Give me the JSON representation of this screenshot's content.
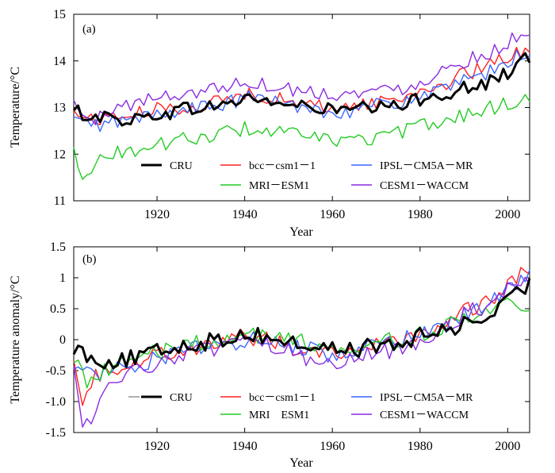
{
  "colors": {
    "CRU": "#000000",
    "bcc": "#ff2020",
    "ipsl": "#3a66ff",
    "mri": "#22cc22",
    "cesm": "#8a2be2",
    "grey_mark": "#b0b0b0"
  },
  "chart_data": [
    {
      "type": "line",
      "panel_label": "(a)",
      "xlabel": "Year",
      "ylabel": "Temperature/°C",
      "xlim": [
        1901,
        2005
      ],
      "ylim": [
        11,
        15
      ],
      "x_ticks": [
        1920,
        1940,
        1960,
        1980,
        2000
      ],
      "y_ticks": [
        11,
        12,
        13,
        14,
        15
      ],
      "x_tick_labels": [
        "1920",
        "1940",
        "1960",
        "1980",
        "2000"
      ],
      "y_tick_labels": [
        "11",
        "12",
        "13",
        "14",
        "15"
      ],
      "legend_position": "bottom-right",
      "series": [
        {
          "name": "CRU",
          "color_key": "CRU",
          "width": 3,
          "keyframes": [
            [
              1901,
              12.9
            ],
            [
              1905,
              12.85
            ],
            [
              1910,
              12.75
            ],
            [
              1915,
              12.75
            ],
            [
              1920,
              12.85
            ],
            [
              1925,
              12.95
            ],
            [
              1930,
              13.0
            ],
            [
              1935,
              13.05
            ],
            [
              1940,
              13.2
            ],
            [
              1945,
              13.15
            ],
            [
              1950,
              13.05
            ],
            [
              1955,
              13.0
            ],
            [
              1960,
              12.95
            ],
            [
              1965,
              12.95
            ],
            [
              1970,
              13.0
            ],
            [
              1975,
              13.0
            ],
            [
              1980,
              13.2
            ],
            [
              1985,
              13.3
            ],
            [
              1990,
              13.4
            ],
            [
              1995,
              13.5
            ],
            [
              2000,
              13.75
            ],
            [
              2005,
              14.1
            ]
          ]
        },
        {
          "name": "bcc－csm1－1",
          "color_key": "bcc",
          "width": 1.4,
          "keyframes": [
            [
              1901,
              12.9
            ],
            [
              1905,
              12.75
            ],
            [
              1910,
              12.8
            ],
            [
              1915,
              12.85
            ],
            [
              1920,
              12.95
            ],
            [
              1925,
              13.0
            ],
            [
              1930,
              13.05
            ],
            [
              1935,
              13.15
            ],
            [
              1940,
              13.3
            ],
            [
              1945,
              13.25
            ],
            [
              1950,
              13.1
            ],
            [
              1955,
              13.05
            ],
            [
              1960,
              13.0
            ],
            [
              1965,
              13.05
            ],
            [
              1970,
              13.1
            ],
            [
              1975,
              13.2
            ],
            [
              1980,
              13.35
            ],
            [
              1985,
              13.5
            ],
            [
              1990,
              13.7
            ],
            [
              1995,
              13.85
            ],
            [
              2000,
              14.1
            ],
            [
              2005,
              14.3
            ]
          ]
        },
        {
          "name": "IPSL－CM5A－MR",
          "color_key": "ipsl",
          "width": 1.4,
          "keyframes": [
            [
              1901,
              12.75
            ],
            [
              1905,
              12.6
            ],
            [
              1910,
              12.7
            ],
            [
              1915,
              12.75
            ],
            [
              1920,
              12.85
            ],
            [
              1925,
              12.95
            ],
            [
              1930,
              13.0
            ],
            [
              1935,
              13.05
            ],
            [
              1940,
              13.2
            ],
            [
              1945,
              13.2
            ],
            [
              1950,
              13.05
            ],
            [
              1955,
              13.0
            ],
            [
              1960,
              12.9
            ],
            [
              1965,
              12.95
            ],
            [
              1970,
              13.05
            ],
            [
              1975,
              13.1
            ],
            [
              1980,
              13.25
            ],
            [
              1985,
              13.35
            ],
            [
              1990,
              13.55
            ],
            [
              1995,
              13.7
            ],
            [
              2000,
              14.0
            ],
            [
              2005,
              14.2
            ]
          ]
        },
        {
          "name": "MRI－ESM1",
          "color_key": "mri",
          "width": 1.4,
          "keyframes": [
            [
              1901,
              12.1
            ],
            [
              1903,
              11.6
            ],
            [
              1905,
              11.7
            ],
            [
              1910,
              12.05
            ],
            [
              1915,
              12.05
            ],
            [
              1920,
              12.2
            ],
            [
              1925,
              12.3
            ],
            [
              1930,
              12.35
            ],
            [
              1935,
              12.45
            ],
            [
              1940,
              12.55
            ],
            [
              1945,
              12.5
            ],
            [
              1950,
              12.45
            ],
            [
              1955,
              12.35
            ],
            [
              1960,
              12.3
            ],
            [
              1965,
              12.3
            ],
            [
              1970,
              12.35
            ],
            [
              1975,
              12.45
            ],
            [
              1980,
              12.6
            ],
            [
              1985,
              12.7
            ],
            [
              1990,
              12.85
            ],
            [
              1995,
              12.95
            ],
            [
              2000,
              13.1
            ],
            [
              2005,
              13.2
            ]
          ]
        },
        {
          "name": "CESM1－WACCM",
          "color_key": "cesm",
          "width": 1.4,
          "keyframes": [
            [
              1901,
              13.1
            ],
            [
              1905,
              12.65
            ],
            [
              1910,
              13.0
            ],
            [
              1915,
              13.1
            ],
            [
              1920,
              13.2
            ],
            [
              1925,
              13.3
            ],
            [
              1930,
              13.35
            ],
            [
              1935,
              13.45
            ],
            [
              1940,
              13.55
            ],
            [
              1945,
              13.5
            ],
            [
              1950,
              13.4
            ],
            [
              1955,
              13.35
            ],
            [
              1960,
              13.3
            ],
            [
              1965,
              13.3
            ],
            [
              1970,
              13.35
            ],
            [
              1975,
              13.4
            ],
            [
              1980,
              13.55
            ],
            [
              1985,
              13.8
            ],
            [
              1990,
              14.0
            ],
            [
              1995,
              14.15
            ],
            [
              2000,
              14.4
            ],
            [
              2005,
              14.6
            ]
          ]
        }
      ],
      "legend": [
        {
          "label": "CRU",
          "color_key": "CRU",
          "width": 3
        },
        {
          "label": "bcc－csm1－1",
          "color_key": "bcc",
          "width": 1.4
        },
        {
          "label": "IPSL－CM5A－MR",
          "color_key": "ipsl",
          "width": 1.4
        },
        {
          "label": "MRI－ESM1",
          "color_key": "mri",
          "width": 1.4
        },
        {
          "label": "CESM1－WACCM",
          "color_key": "cesm",
          "width": 1.4
        }
      ]
    },
    {
      "type": "line",
      "panel_label": "(b)",
      "xlabel": "Year",
      "ylabel": "Temperature anomaly/°C",
      "xlim": [
        1901,
        2005
      ],
      "ylim": [
        -1.5,
        1.5
      ],
      "x_ticks": [
        1920,
        1940,
        1960,
        1980,
        2000
      ],
      "y_ticks": [
        -1.5,
        -1.0,
        -0.5,
        0,
        0.5,
        1,
        1.5
      ],
      "x_tick_labels": [
        "1920",
        "1940",
        "1960",
        "1980",
        "2000"
      ],
      "y_tick_labels": [
        "-1.5",
        "-1.0",
        "-0.5",
        "0",
        "0.5",
        "1",
        "1.5"
      ],
      "legend_position": "bottom-right",
      "series": [
        {
          "name": "CRU",
          "color_key": "CRU",
          "width": 3,
          "keyframes": [
            [
              1901,
              -0.1
            ],
            [
              1905,
              -0.3
            ],
            [
              1910,
              -0.35
            ],
            [
              1915,
              -0.3
            ],
            [
              1920,
              -0.2
            ],
            [
              1925,
              -0.1
            ],
            [
              1930,
              -0.05
            ],
            [
              1935,
              0.0
            ],
            [
              1940,
              0.1
            ],
            [
              1945,
              0.05
            ],
            [
              1950,
              -0.05
            ],
            [
              1955,
              -0.1
            ],
            [
              1960,
              -0.15
            ],
            [
              1965,
              -0.15
            ],
            [
              1970,
              -0.1
            ],
            [
              1975,
              -0.1
            ],
            [
              1980,
              0.05
            ],
            [
              1985,
              0.15
            ],
            [
              1990,
              0.25
            ],
            [
              1995,
              0.35
            ],
            [
              2000,
              0.6
            ],
            [
              2005,
              0.9
            ]
          ]
        },
        {
          "name": "bcc－csm1－1",
          "color_key": "bcc",
          "width": 1.4,
          "keyframes": [
            [
              1901,
              -0.2
            ],
            [
              1903,
              -0.95
            ],
            [
              1906,
              -0.6
            ],
            [
              1910,
              -0.45
            ],
            [
              1915,
              -0.35
            ],
            [
              1920,
              -0.25
            ],
            [
              1925,
              -0.15
            ],
            [
              1930,
              -0.1
            ],
            [
              1935,
              -0.05
            ],
            [
              1940,
              0.05
            ],
            [
              1945,
              0.0
            ],
            [
              1950,
              -0.1
            ],
            [
              1955,
              -0.15
            ],
            [
              1960,
              -0.2
            ],
            [
              1965,
              -0.15
            ],
            [
              1970,
              -0.1
            ],
            [
              1975,
              -0.05
            ],
            [
              1980,
              0.1
            ],
            [
              1985,
              0.25
            ],
            [
              1990,
              0.45
            ],
            [
              1995,
              0.6
            ],
            [
              2000,
              0.85
            ],
            [
              2003,
              1.1
            ],
            [
              2005,
              0.95
            ]
          ]
        },
        {
          "name": "IPSL－CM5A－MR",
          "color_key": "ipsl",
          "width": 1.4,
          "keyframes": [
            [
              1901,
              -0.35
            ],
            [
              1905,
              -0.6
            ],
            [
              1910,
              -0.45
            ],
            [
              1915,
              -0.4
            ],
            [
              1920,
              -0.3
            ],
            [
              1925,
              -0.2
            ],
            [
              1930,
              -0.15
            ],
            [
              1935,
              -0.1
            ],
            [
              1940,
              0.0
            ],
            [
              1945,
              0.0
            ],
            [
              1950,
              -0.1
            ],
            [
              1955,
              -0.15
            ],
            [
              1960,
              -0.25
            ],
            [
              1965,
              -0.2
            ],
            [
              1970,
              -0.1
            ],
            [
              1975,
              -0.05
            ],
            [
              1980,
              0.1
            ],
            [
              1985,
              0.2
            ],
            [
              1990,
              0.4
            ],
            [
              1995,
              0.55
            ],
            [
              2000,
              0.8
            ],
            [
              2005,
              1.0
            ]
          ]
        },
        {
          "name": "MRI－ESM1",
          "color_key": "mri",
          "width": 1.4,
          "keyframes": [
            [
              1901,
              -0.25
            ],
            [
              1904,
              -0.7
            ],
            [
              1908,
              -0.45
            ],
            [
              1912,
              -0.4
            ],
            [
              1920,
              -0.2
            ],
            [
              1925,
              -0.1
            ],
            [
              1930,
              -0.05
            ],
            [
              1935,
              0.0
            ],
            [
              1940,
              0.1
            ],
            [
              1945,
              0.05
            ],
            [
              1950,
              0.0
            ],
            [
              1955,
              -0.05
            ],
            [
              1960,
              -0.1
            ],
            [
              1965,
              -0.1
            ],
            [
              1970,
              -0.05
            ],
            [
              1975,
              0.0
            ],
            [
              1980,
              0.1
            ],
            [
              1985,
              0.2
            ],
            [
              1990,
              0.3
            ],
            [
              1995,
              0.4
            ],
            [
              2000,
              0.55
            ],
            [
              2005,
              0.6
            ]
          ]
        },
        {
          "name": "CESM1－WACCM",
          "color_key": "cesm",
          "width": 1.4,
          "keyframes": [
            [
              1901,
              -0.3
            ],
            [
              1903,
              -1.3
            ],
            [
              1906,
              -1.3
            ],
            [
              1908,
              -0.85
            ],
            [
              1912,
              -0.6
            ],
            [
              1916,
              -0.5
            ],
            [
              1920,
              -0.35
            ],
            [
              1925,
              -0.25
            ],
            [
              1930,
              -0.2
            ],
            [
              1935,
              -0.15
            ],
            [
              1940,
              -0.05
            ],
            [
              1945,
              -0.1
            ],
            [
              1950,
              -0.2
            ],
            [
              1955,
              -0.3
            ],
            [
              1960,
              -0.35
            ],
            [
              1965,
              -0.3
            ],
            [
              1970,
              -0.2
            ],
            [
              1975,
              -0.15
            ],
            [
              1980,
              0.0
            ],
            [
              1985,
              0.2
            ],
            [
              1990,
              0.4
            ],
            [
              1995,
              0.55
            ],
            [
              2000,
              0.8
            ],
            [
              2005,
              1.0
            ]
          ]
        }
      ],
      "legend": [
        {
          "label": "CRU",
          "color_key": "CRU",
          "width": 3,
          "grey_prefix": true
        },
        {
          "label": "bcc－csm1－1",
          "color_key": "bcc",
          "width": 1.4
        },
        {
          "label": "IPSL－CM5A－MR",
          "color_key": "ipsl",
          "width": 1.4
        },
        {
          "label": "MRI　ESM1",
          "color_key": "mri",
          "width": 1.4
        },
        {
          "label": "CESM1－WACCM",
          "color_key": "cesm",
          "width": 1.4
        }
      ]
    }
  ]
}
